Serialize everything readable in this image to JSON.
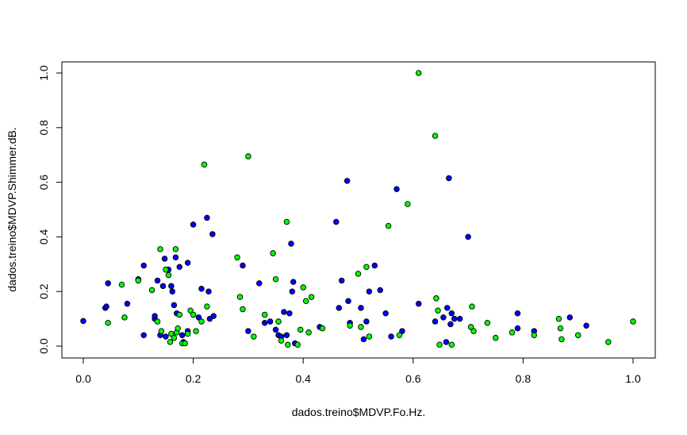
{
  "chart_data": {
    "type": "scatter",
    "title": "",
    "xlabel": "dados.treino$MDVP.Fo.Hz.",
    "ylabel": "dados.treino$MDVP.Shimmer.dB.",
    "xlim": [
      0,
      1
    ],
    "ylim": [
      0,
      1
    ],
    "x_ticks": [
      "0.0",
      "0.2",
      "0.4",
      "0.6",
      "0.8",
      "1.0"
    ],
    "y_ticks": [
      "0.0",
      "0.2",
      "0.4",
      "0.6",
      "0.8",
      "1.0"
    ],
    "grid": false,
    "legend": "none",
    "series": [
      {
        "color": "#0000ff",
        "points": [
          [
            0.0,
            0.092
          ],
          [
            0.04,
            0.14
          ],
          [
            0.042,
            0.145
          ],
          [
            0.045,
            0.23
          ],
          [
            0.08,
            0.155
          ],
          [
            0.1,
            0.245
          ],
          [
            0.11,
            0.295
          ],
          [
            0.11,
            0.04
          ],
          [
            0.13,
            0.1
          ],
          [
            0.13,
            0.11
          ],
          [
            0.135,
            0.24
          ],
          [
            0.14,
            0.04
          ],
          [
            0.145,
            0.22
          ],
          [
            0.148,
            0.32
          ],
          [
            0.15,
            0.035
          ],
          [
            0.155,
            0.28
          ],
          [
            0.16,
            0.22
          ],
          [
            0.162,
            0.2
          ],
          [
            0.165,
            0.15
          ],
          [
            0.168,
            0.325
          ],
          [
            0.17,
            0.12
          ],
          [
            0.175,
            0.29
          ],
          [
            0.18,
            0.04
          ],
          [
            0.182,
            0.015
          ],
          [
            0.19,
            0.055
          ],
          [
            0.19,
            0.305
          ],
          [
            0.2,
            0.445
          ],
          [
            0.21,
            0.105
          ],
          [
            0.215,
            0.21
          ],
          [
            0.225,
            0.47
          ],
          [
            0.228,
            0.2
          ],
          [
            0.23,
            0.1
          ],
          [
            0.235,
            0.41
          ],
          [
            0.237,
            0.11
          ],
          [
            0.29,
            0.295
          ],
          [
            0.3,
            0.055
          ],
          [
            0.32,
            0.23
          ],
          [
            0.33,
            0.085
          ],
          [
            0.34,
            0.09
          ],
          [
            0.35,
            0.06
          ],
          [
            0.355,
            0.04
          ],
          [
            0.36,
            0.035
          ],
          [
            0.365,
            0.125
          ],
          [
            0.37,
            0.04
          ],
          [
            0.375,
            0.12
          ],
          [
            0.378,
            0.375
          ],
          [
            0.38,
            0.2
          ],
          [
            0.382,
            0.235
          ],
          [
            0.385,
            0.01
          ],
          [
            0.43,
            0.07
          ],
          [
            0.46,
            0.455
          ],
          [
            0.465,
            0.14
          ],
          [
            0.47,
            0.24
          ],
          [
            0.48,
            0.605
          ],
          [
            0.482,
            0.165
          ],
          [
            0.485,
            0.085
          ],
          [
            0.505,
            0.14
          ],
          [
            0.51,
            0.025
          ],
          [
            0.515,
            0.09
          ],
          [
            0.52,
            0.2
          ],
          [
            0.53,
            0.295
          ],
          [
            0.54,
            0.205
          ],
          [
            0.55,
            0.12
          ],
          [
            0.56,
            0.035
          ],
          [
            0.57,
            0.575
          ],
          [
            0.58,
            0.055
          ],
          [
            0.61,
            0.155
          ],
          [
            0.64,
            0.09
          ],
          [
            0.655,
            0.105
          ],
          [
            0.66,
            0.015
          ],
          [
            0.662,
            0.14
          ],
          [
            0.665,
            0.615
          ],
          [
            0.668,
            0.08
          ],
          [
            0.67,
            0.12
          ],
          [
            0.675,
            0.1
          ],
          [
            0.685,
            0.1
          ],
          [
            0.7,
            0.4
          ],
          [
            0.79,
            0.12
          ],
          [
            0.79,
            0.065
          ],
          [
            0.82,
            0.055
          ],
          [
            0.885,
            0.105
          ],
          [
            0.915,
            0.075
          ]
        ]
      },
      {
        "color": "#00ff00",
        "points": [
          [
            0.045,
            0.085
          ],
          [
            0.07,
            0.225
          ],
          [
            0.075,
            0.105
          ],
          [
            0.1,
            0.24
          ],
          [
            0.125,
            0.205
          ],
          [
            0.135,
            0.09
          ],
          [
            0.14,
            0.355
          ],
          [
            0.142,
            0.055
          ],
          [
            0.15,
            0.28
          ],
          [
            0.155,
            0.26
          ],
          [
            0.158,
            0.015
          ],
          [
            0.16,
            0.045
          ],
          [
            0.165,
            0.03
          ],
          [
            0.168,
            0.355
          ],
          [
            0.17,
            0.05
          ],
          [
            0.172,
            0.065
          ],
          [
            0.175,
            0.115
          ],
          [
            0.18,
            0.01
          ],
          [
            0.185,
            0.01
          ],
          [
            0.19,
            0.045
          ],
          [
            0.195,
            0.13
          ],
          [
            0.2,
            0.115
          ],
          [
            0.205,
            0.055
          ],
          [
            0.215,
            0.09
          ],
          [
            0.22,
            0.665
          ],
          [
            0.225,
            0.145
          ],
          [
            0.28,
            0.325
          ],
          [
            0.285,
            0.18
          ],
          [
            0.29,
            0.135
          ],
          [
            0.3,
            0.695
          ],
          [
            0.31,
            0.035
          ],
          [
            0.33,
            0.115
          ],
          [
            0.345,
            0.34
          ],
          [
            0.35,
            0.245
          ],
          [
            0.355,
            0.09
          ],
          [
            0.36,
            0.02
          ],
          [
            0.37,
            0.455
          ],
          [
            0.372,
            0.005
          ],
          [
            0.39,
            0.005
          ],
          [
            0.395,
            0.06
          ],
          [
            0.4,
            0.215
          ],
          [
            0.405,
            0.165
          ],
          [
            0.41,
            0.05
          ],
          [
            0.415,
            0.18
          ],
          [
            0.435,
            0.065
          ],
          [
            0.485,
            0.075
          ],
          [
            0.5,
            0.265
          ],
          [
            0.505,
            0.07
          ],
          [
            0.515,
            0.29
          ],
          [
            0.52,
            0.035
          ],
          [
            0.555,
            0.44
          ],
          [
            0.575,
            0.04
          ],
          [
            0.59,
            0.52
          ],
          [
            0.61,
            1.0
          ],
          [
            0.64,
            0.77
          ],
          [
            0.642,
            0.175
          ],
          [
            0.645,
            0.13
          ],
          [
            0.648,
            0.005
          ],
          [
            0.67,
            0.005
          ],
          [
            0.705,
            0.07
          ],
          [
            0.707,
            0.145
          ],
          [
            0.71,
            0.055
          ],
          [
            0.735,
            0.085
          ],
          [
            0.75,
            0.03
          ],
          [
            0.78,
            0.05
          ],
          [
            0.82,
            0.04
          ],
          [
            0.865,
            0.1
          ],
          [
            0.868,
            0.065
          ],
          [
            0.87,
            0.025
          ],
          [
            0.9,
            0.04
          ],
          [
            0.955,
            0.015
          ],
          [
            1.0,
            0.09
          ]
        ]
      }
    ]
  }
}
